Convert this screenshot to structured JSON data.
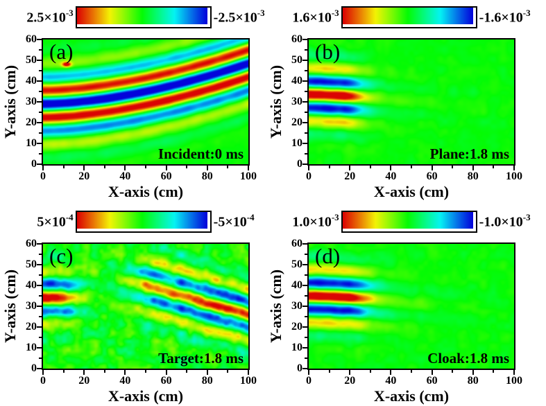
{
  "figure": {
    "background": "#ffffff",
    "axis_x": {
      "label": "X-axis (cm)",
      "min": 0,
      "max": 100,
      "major_ticks": [
        0,
        20,
        40,
        60,
        80,
        100
      ],
      "tick_labels": [
        "0",
        "20",
        "40",
        "60",
        "80",
        "100"
      ],
      "minor_step": 10
    },
    "axis_y": {
      "label": "Y-axis (cm)",
      "min": 0,
      "max": 60,
      "major_ticks": [
        0,
        10,
        20,
        30,
        40,
        50,
        60
      ],
      "tick_labels": [
        "0",
        "10",
        "20",
        "30",
        "40",
        "50",
        "60"
      ],
      "minor_step": 5
    },
    "colormap": {
      "type": "rainbow",
      "positive_end": "#dd1100",
      "zero": "#00ee00",
      "negative_end": "#0011dd"
    }
  },
  "chart_data": [
    {
      "panel": "a",
      "type": "heatmap",
      "label": "(a)",
      "annotation": "Incident:0 ms",
      "x_range": [
        0,
        100
      ],
      "y_range": [
        0,
        60
      ],
      "colorbar": {
        "max": {
          "mantissa": "2.5×10",
          "exp": "-3"
        },
        "min": {
          "mantissa": "-2.5×10",
          "exp": "-3"
        }
      },
      "description": "Incident flexural wave packet at 0 ms: strong horizontal wavefronts on the left (blue crest at y=29 cm, red crests at y=22 and 35.5 cm, wavelength about 13.4 cm) that bend upward toward the right edge by about 19.5 cm at x=100 cm.",
      "field_model": {
        "components": [
          {
            "type": "band_wave",
            "y0": 29,
            "env_y0": 28,
            "sigma_y": 17,
            "lambda": 13.4,
            "amp": 1.2,
            "phase": 3.14159,
            "bend_amp": 19.5,
            "bend_pow": 1.7
          },
          {
            "type": "spot",
            "cx": 11.5,
            "cy": 48,
            "sx": 2.2,
            "sy": 1.2,
            "amp": 1.0
          }
        ],
        "noise": {
          "amp": 0.05,
          "scale": 5,
          "seed": 11
        }
      }
    },
    {
      "panel": "b",
      "type": "heatmap",
      "label": "(b)",
      "annotation": "Plane:1.8 ms",
      "x_range": [
        0,
        100
      ],
      "y_range": [
        0,
        60
      ],
      "colorbar": {
        "max": {
          "mantissa": "1.6×10",
          "exp": "-3"
        },
        "min": {
          "mantissa": "-1.6×10",
          "exp": "-3"
        }
      },
      "description": "Plane plate at 1.8 ms: trailing wave bands confined near the left edge (red crest at y=33.5 cm, blue at y=27 and 40.5 cm), amplitude decaying past x=25 cm with faint ripples drifting slightly downward to about x=60 cm.",
      "field_model": {
        "components": [
          {
            "type": "band_wave",
            "y0": 33.5,
            "sigma_y": 14.5,
            "lambda": 13.3,
            "amp": 1.2,
            "phase": 0,
            "bend_amp": -8,
            "bend_pow": 1.4,
            "xenv": {
              "x0": 24,
              "k": 4,
              "tail": 0.17,
              "tail_len": 26
            }
          }
        ],
        "noise": {
          "amp": 0.07,
          "scale": 5,
          "seed": 22
        }
      }
    },
    {
      "panel": "c",
      "type": "heatmap",
      "label": "(c)",
      "annotation": "Target:1.8 ms",
      "x_range": [
        0,
        100
      ],
      "y_range": [
        0,
        60
      ],
      "colorbar": {
        "max": {
          "mantissa": "5×10",
          "exp": "-4"
        },
        "min": {
          "mantissa": "-5×10",
          "exp": "-4"
        }
      },
      "description": "Bare target at 1.8 ms: weak residual horizontal bands near the left edge (red at y=34 cm, blue at y=27.5 and 41 cm), a quiet zone at x=20-40 cm, and a strong scattered beam of diagonal stripes descending to the lower right (slope about -0.28, wavelength 13 cm), with visible speckle noise everywhere.",
      "field_model": {
        "components": [
          {
            "type": "band_wave",
            "y0": 34,
            "sigma_y": 13.5,
            "lambda": 13.3,
            "amp": 1.05,
            "phase": 0,
            "xenv": {
              "x0": 16,
              "k": 4,
              "tail": 0.1,
              "tail_len": 14
            }
          },
          {
            "type": "band_wave",
            "y0": 54,
            "sigma_y": 16,
            "lambda": 13,
            "amp": 0.9,
            "phase": 0,
            "bend_amp": -28,
            "bend_pow": 1,
            "xramp": {
              "x0": 45,
              "k": 5
            }
          }
        ],
        "noise": {
          "amp": 0.28,
          "scale": 4.2,
          "seed": 33
        }
      }
    },
    {
      "panel": "d",
      "type": "heatmap",
      "label": "(d)",
      "annotation": "Cloak:1.8 ms",
      "x_range": [
        0,
        100
      ],
      "y_range": [
        0,
        60
      ],
      "colorbar": {
        "max": {
          "mantissa": "1.0×10",
          "exp": "-3"
        },
        "min": {
          "mantissa": "-1.0×10",
          "exp": "-3"
        }
      },
      "description": "Cloaked target at 1.8 ms: nearly the same as the plane plate - trailing bands at the left edge (red crest at y=35 cm, blue at y=28.3 and 41.5 cm) decaying past x=28 cm, faint down-curving ripples to about x=60 cm, mild background noise.",
      "field_model": {
        "components": [
          {
            "type": "band_wave",
            "y0": 35,
            "sigma_y": 14.5,
            "lambda": 13.3,
            "amp": 1.2,
            "phase": 0,
            "bend_amp": -8,
            "bend_pow": 1.4,
            "xenv": {
              "x0": 26,
              "k": 4.5,
              "tail": 0.2,
              "tail_len": 30
            }
          }
        ],
        "noise": {
          "amp": 0.09,
          "scale": 5,
          "seed": 44
        }
      }
    }
  ]
}
